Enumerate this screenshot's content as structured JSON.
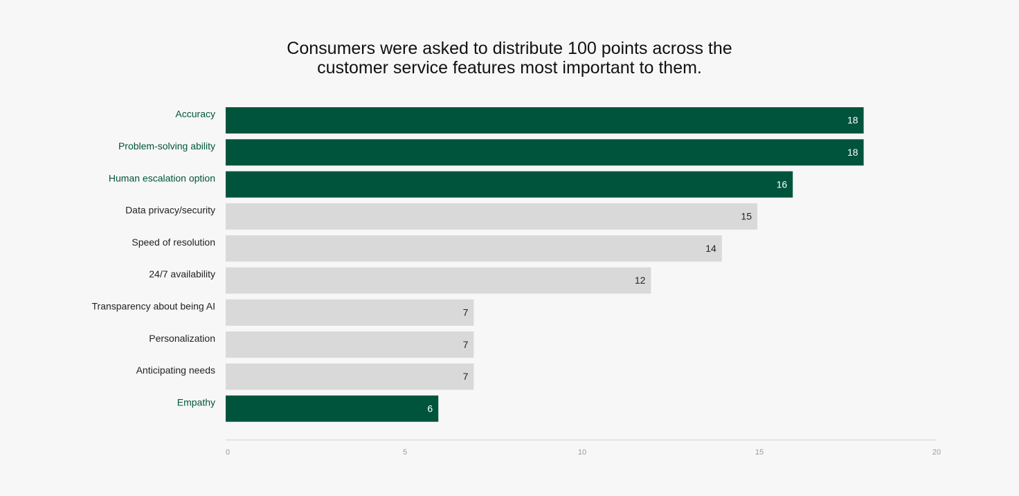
{
  "chart_data": {
    "type": "hbar",
    "title": "Consumers were asked to distribute 100 points across the customer service features most important to them.",
    "categories": [
      "Accuracy",
      "Problem-solving ability",
      "Human escalation option",
      "Data privacy/security",
      "Speed of resolution",
      "24/7 availability",
      "Transparency about being AI",
      "Personalization",
      "Anticipating needs",
      "Empathy"
    ],
    "values": [
      18,
      18,
      16,
      15,
      14,
      12,
      7,
      7,
      7,
      6
    ],
    "base_color": "#d9d9d9",
    "colors": [
      "#00543c",
      "#00543c",
      "#00543c",
      "#d9d9d9",
      "#d9d9d9",
      "#d9d9d9",
      "#d9d9d9",
      "#d9d9d9",
      "#d9d9d9",
      "#00543c"
    ],
    "xlim": [
      0,
      20
    ],
    "xticks": [
      0,
      5,
      10,
      15,
      20
    ]
  }
}
